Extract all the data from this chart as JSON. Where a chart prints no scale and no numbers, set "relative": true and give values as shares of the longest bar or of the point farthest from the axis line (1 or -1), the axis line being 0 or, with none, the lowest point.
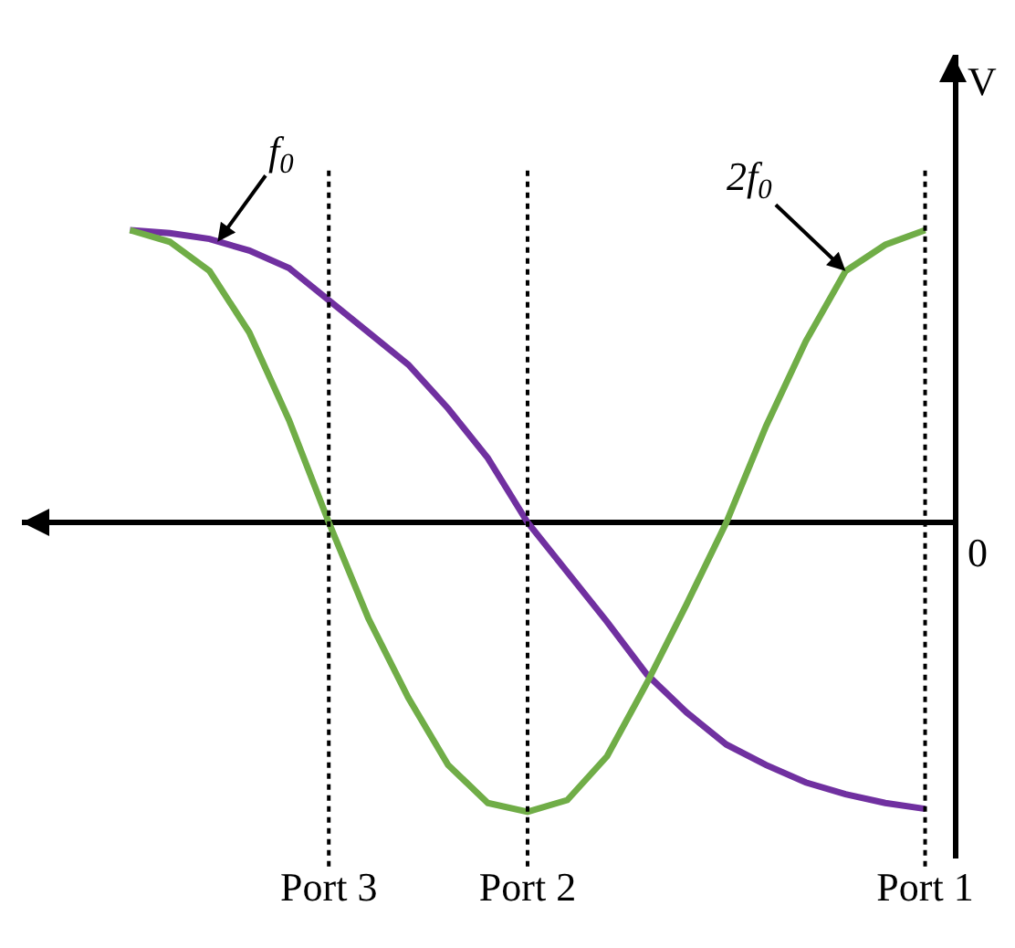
{
  "chart_data": {
    "type": "line",
    "relative": true,
    "ylabel": "V",
    "annotations": [
      "0"
    ],
    "legend": false,
    "tick_labels": "x",
    "grid": false,
    "categories": [
      null,
      null,
      null,
      null,
      null,
      "Port 3",
      null,
      null,
      null,
      null,
      "Port 2",
      null,
      null,
      null,
      null,
      null,
      null,
      null,
      null,
      null,
      "Port 1"
    ],
    "series": [
      {
        "name": "f$_{0}$",
        "color": "#7030a0",
        "values": [
          1,
          0.99,
          0.97,
          0.93,
          0.87,
          0.76,
          0.65,
          0.54,
          0.39,
          0.22,
          0,
          -0.17,
          -0.34,
          -0.52,
          -0.65,
          -0.76,
          -0.83,
          -0.89,
          -0.93,
          -0.96,
          -0.98
        ]
      },
      {
        "name": "2f$_{0}$",
        "color": "#70ad47",
        "values": [
          1,
          0.96,
          0.86,
          0.65,
          0.35,
          0,
          -0.33,
          -0.6,
          -0.83,
          -0.96,
          -0.99,
          -0.95,
          -0.8,
          -0.55,
          -0.28,
          0,
          0.33,
          0.62,
          0.86,
          0.95,
          1
        ]
      }
    ],
    "ref_lines": [
      {
        "axis": "x",
        "value": "Port 3",
        "color": "#000000",
        "line_style": "dotted"
      },
      {
        "axis": "x",
        "value": "Port 2",
        "color": "#000000",
        "line_style": "dotted"
      },
      {
        "axis": "x",
        "value": "Port 1",
        "color": "#000000",
        "line_style": "dotted"
      }
    ]
  }
}
